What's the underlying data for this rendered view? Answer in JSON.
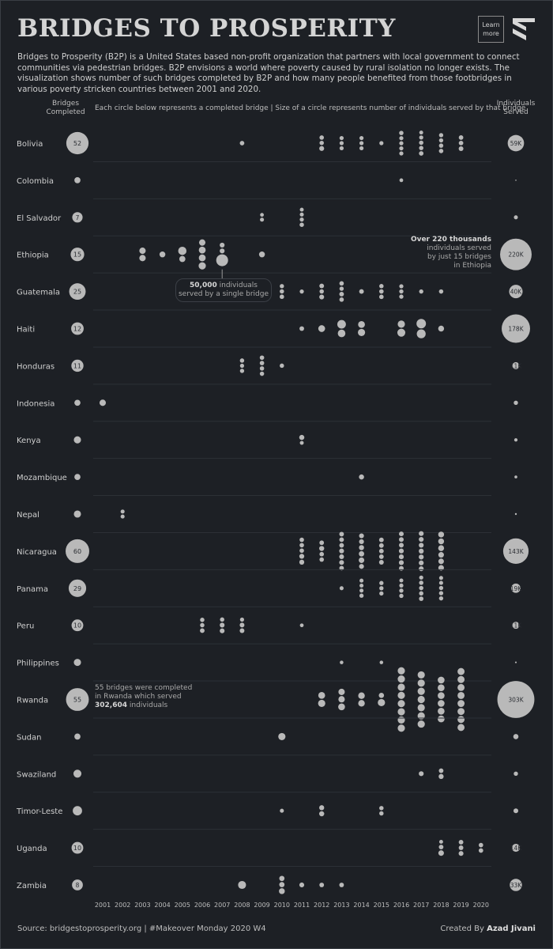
{
  "header": {
    "title": "BRIDGES TO PROSPERITY",
    "learn_more": "Learn\nmore",
    "description": "Bridges to Prosperity (B2P) is a United States based non-profit organization that partners with local government to connect communities via pedestrian bridges. B2P envisions a world where poverty caused by rural isolation no longer exists. The visualization shows number of such bridges completed by B2P and how many people benefited from those footbridges in various poverty stricken countries between 2001 and 2020."
  },
  "columns": {
    "bridges_header": "Bridges\nCompleted",
    "center_header": "Each circle below represents a completed bridge  |  Size of a circle represents number of individuals served by that bridge",
    "served_header": "Individuals\nServed"
  },
  "annotations": {
    "ethiopia_top_bold": "Over 220 thousands",
    "ethiopia_rest": "individuals served\nby just 15 bridges\nin Ethiopia",
    "single_bridge_bold": "50,000",
    "single_bridge_rest1": " individuals",
    "single_bridge_rest2": "served by a single bridge",
    "rwanda_line1": "55 bridges were completed",
    "rwanda_line2": "in Rwanda which served",
    "rwanda_bold": "302,604",
    "rwanda_rest": " individuals"
  },
  "footer": {
    "source": "Source: bridgestoprosperity.org | #Makeover Monday 2020 W4",
    "credit_prefix": "Created By ",
    "credit_name": "Azad Jivani"
  },
  "colors": {
    "background": "#1d2025",
    "circle": "#b9b9b9",
    "circle_text": "#2a2d32",
    "grid": "#2c3036"
  },
  "chart_data": {
    "type": "scatter",
    "x": [
      2001,
      2002,
      2003,
      2004,
      2005,
      2006,
      2007,
      2008,
      2009,
      2010,
      2011,
      2012,
      2013,
      2014,
      2015,
      2016,
      2017,
      2018,
      2019,
      2020
    ],
    "countries": [
      {
        "name": "Bolivia",
        "bridges": 52,
        "served_label": "59K",
        "served": 59000,
        "bridges_by_year": {
          "2008": [
            1100
          ],
          "2012": [
            1000,
            900,
            1500
          ],
          "2013": [
            700,
            700,
            700
          ],
          "2014": [
            700,
            700,
            700
          ],
          "2015": [
            700
          ],
          "2016": [
            900,
            700,
            700,
            700,
            700
          ],
          "2017": [
            500,
            700,
            900,
            900,
            1100
          ],
          "2018": [
            800,
            800,
            900,
            1000
          ],
          "2019": [
            1100,
            1100,
            1300
          ]
        }
      },
      {
        "name": "Colombia",
        "bridges": 1,
        "served_label": "",
        "served": 300,
        "bridges_by_year": {
          "2016": [
            400
          ]
        }
      },
      {
        "name": "El Salvador",
        "bridges": 7,
        "served_label": "",
        "served": 3500,
        "bridges_by_year": {
          "2009": [
            400,
            600
          ],
          "2011": [
            500,
            600,
            700,
            900
          ]
        }
      },
      {
        "name": "Ethiopia",
        "bridges": 15,
        "served_label": "220K",
        "served": 220000,
        "bridges_by_year": {
          "2003": [
            4000,
            4000
          ],
          "2004": [
            3000
          ],
          "2005": [
            9000,
            3500
          ],
          "2006": [
            4000,
            5000,
            5000,
            6000
          ],
          "2007": [
            1500,
            1500,
            50000
          ],
          "2009": [
            3000
          ]
        }
      },
      {
        "name": "Guatemala",
        "bridges": 25,
        "served_label": "40K",
        "served": 40000,
        "bridges_by_year": {
          "2010": [
            800,
            900,
            1000
          ],
          "2011": [
            700
          ],
          "2012": [
            1300,
            900,
            1500
          ],
          "2013": [
            1000,
            800,
            1200,
            1000
          ],
          "2014": [
            1200
          ],
          "2015": [
            900,
            1000,
            1000
          ],
          "2016": [
            700,
            800,
            800
          ],
          "2017": [
            800
          ],
          "2018": [
            900
          ]
        }
      },
      {
        "name": "Haiti",
        "bridges": 12,
        "served_label": "178K",
        "served": 178000,
        "bridges_by_year": {
          "2011": [
            1200
          ],
          "2012": [
            5000
          ],
          "2013": [
            10000,
            7000
          ],
          "2014": [
            5000,
            6000
          ],
          "2016": [
            6000,
            8000
          ],
          "2017": [
            13000,
            11000
          ],
          "2018": [
            3000
          ]
        }
      },
      {
        "name": "Honduras",
        "bridges": 11,
        "served_label": "11K",
        "served": 11000,
        "bridges_by_year": {
          "2008": [
            900,
            700,
            800
          ],
          "2009": [
            1000,
            1000,
            900,
            900
          ],
          "2010": [
            900
          ]
        }
      },
      {
        "name": "Indonesia",
        "bridges": 1,
        "served_label": "",
        "served": 4000,
        "bridges_by_year": {
          "2001": [
            4000
          ]
        }
      },
      {
        "name": "Kenya",
        "bridges": 2,
        "served_label": "",
        "served": 2500,
        "bridges_by_year": {
          "2011": [
            1800,
            500
          ]
        }
      },
      {
        "name": "Mozambique",
        "bridges": 1,
        "served_label": "",
        "served": 1800,
        "bridges_by_year": {
          "2014": [
            1800
          ]
        }
      },
      {
        "name": "Nepal",
        "bridges": 2,
        "served_label": "",
        "served": 800,
        "bridges_by_year": {
          "2002": [
            600,
            600
          ]
        }
      },
      {
        "name": "Nicaragua",
        "bridges": 60,
        "served_label": "143K",
        "served": 143000,
        "bridges_by_year": {
          "2011": [
            1000,
            1000,
            1000,
            1600,
            1600
          ],
          "2012": [
            1100,
            1700,
            1000,
            1000
          ],
          "2013": [
            1200,
            1200,
            1200,
            1400,
            1400,
            1400,
            1200
          ],
          "2014": [
            1500,
            1500,
            1800,
            2200,
            2500,
            1500
          ],
          "2015": [
            1200,
            1200,
            1200,
            1200,
            1300
          ],
          "2016": [
            1300,
            1300,
            1300,
            1500,
            1500,
            1500,
            1300
          ],
          "2017": [
            1500,
            1500,
            1500,
            1600,
            1600,
            1500,
            1500
          ],
          "2018": [
            3000,
            3000,
            3000,
            2500,
            2500,
            2500
          ]
        }
      },
      {
        "name": "Panama",
        "bridges": 29,
        "served_label": "19K",
        "served": 19000,
        "bridges_by_year": {
          "2013": [
            600
          ],
          "2014": [
            600,
            600,
            600,
            800
          ],
          "2015": [
            800,
            800,
            800
          ],
          "2016": [
            600,
            700,
            800,
            800
          ],
          "2017": [
            700,
            900,
            900,
            900,
            1000
          ],
          "2018": [
            600,
            600,
            800,
            800,
            800
          ]
        }
      },
      {
        "name": "Peru",
        "bridges": 10,
        "served_label": "11K",
        "served": 11000,
        "bridges_by_year": {
          "2006": [
            900,
            900,
            1200
          ],
          "2007": [
            900,
            1400,
            1400
          ],
          "2008": [
            700,
            1300,
            1300
          ],
          "2011": [
            400
          ]
        }
      },
      {
        "name": "Philippines",
        "bridges": 2,
        "served_label": "",
        "served": 600,
        "bridges_by_year": {
          "2013": [
            300
          ],
          "2015": [
            300
          ]
        }
      },
      {
        "name": "Rwanda",
        "bridges": 55,
        "served_label": "303K",
        "served": 302604,
        "bridges_by_year": {
          "2012": [
            5000,
            6000
          ],
          "2013": [
            4000,
            4000,
            5000
          ],
          "2014": [
            4500,
            4500
          ],
          "2015": [
            2000,
            6000
          ],
          "2016": [
            6000,
            6000,
            6000,
            6000,
            6000,
            6000,
            6000,
            6000
          ],
          "2017": [
            6000,
            6000,
            6000,
            6000,
            6000,
            6000,
            6000
          ],
          "2018": [
            5000,
            5000,
            5000,
            5000,
            5000,
            5000
          ],
          "2019": [
            5500,
            5500,
            5500,
            5500,
            5500,
            5500,
            5500,
            5500
          ]
        }
      },
      {
        "name": "Sudan",
        "bridges": 1,
        "served_label": "",
        "served": 6000,
        "bridges_by_year": {
          "2010": [
            6000
          ]
        }
      },
      {
        "name": "Swaziland",
        "bridges": 3,
        "served_label": "",
        "served": 4000,
        "bridges_by_year": {
          "2017": [
            1500
          ],
          "2018": [
            1200,
            1700
          ]
        }
      },
      {
        "name": "Timor-Leste",
        "bridges": 5,
        "served_label": "",
        "served": 5000,
        "bridges_by_year": {
          "2010": [
            600
          ],
          "2012": [
            1700,
            1800
          ],
          "2015": [
            900,
            900
          ]
        }
      },
      {
        "name": "Uganda",
        "bridges": 10,
        "served_label": "14K",
        "served": 14000,
        "bridges_by_year": {
          "2018": [
            500,
            1200,
            2500
          ],
          "2019": [
            1200,
            1200,
            1400
          ],
          "2020": [
            1000,
            1100
          ]
        }
      },
      {
        "name": "Zambia",
        "bridges": 8,
        "served_label": "33K",
        "served": 33000,
        "bridges_by_year": {
          "2008": [
            8000
          ],
          "2010": [
            2000,
            2000,
            3000
          ],
          "2011": [
            1500
          ],
          "2012": [
            1200
          ],
          "2013": [
            1200
          ]
        }
      }
    ]
  }
}
